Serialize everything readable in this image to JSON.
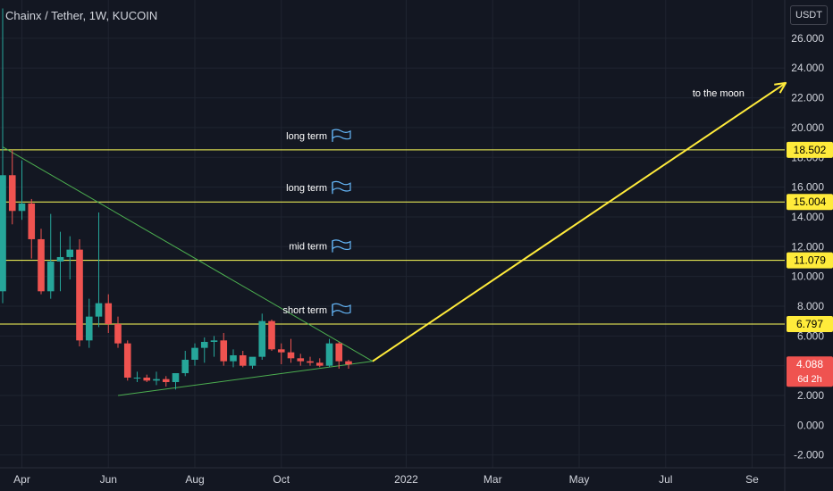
{
  "header": {
    "title": "Chainx / Tether, 1W, KUCOIN",
    "unit": "USDT"
  },
  "chart_data": {
    "type": "candlestick",
    "title": "Chainx / Tether, 1W, KUCOIN",
    "ylabel": "USDT",
    "ylim": [
      -2.6,
      27.5
    ],
    "y_ticks": [
      "-2.000",
      "0.000",
      "2.000",
      "4.000",
      "6.000",
      "8.000",
      "10.000",
      "12.000",
      "14.000",
      "16.000",
      "18.000",
      "20.000",
      "22.000",
      "24.000",
      "26.000"
    ],
    "y_tick_values": [
      -2,
      0,
      2,
      4,
      6,
      8,
      10,
      12,
      14,
      16,
      18,
      20,
      22,
      24,
      26
    ],
    "x_labels": [
      {
        "label": "Apr",
        "week": 2
      },
      {
        "label": "Jun",
        "week": 11
      },
      {
        "label": "Aug",
        "week": 20
      },
      {
        "label": "Oct",
        "week": 29
      },
      {
        "label": "2022",
        "week": 42
      },
      {
        "label": "Mar",
        "week": 51
      },
      {
        "label": "May",
        "week": 60
      },
      {
        "label": "Jul",
        "week": 69
      },
      {
        "label": "Se",
        "week": 78
      }
    ],
    "candles": [
      {
        "o": 9.0,
        "h": 28.0,
        "l": 8.2,
        "c": 16.8
      },
      {
        "o": 16.8,
        "h": 18.5,
        "l": 13.5,
        "c": 14.4
      },
      {
        "o": 14.4,
        "h": 17.8,
        "l": 13.8,
        "c": 14.9
      },
      {
        "o": 14.9,
        "h": 15.2,
        "l": 11.2,
        "c": 12.5
      },
      {
        "o": 12.5,
        "h": 13.2,
        "l": 8.8,
        "c": 9.0
      },
      {
        "o": 9.0,
        "h": 14.2,
        "l": 8.5,
        "c": 11.0
      },
      {
        "o": 11.0,
        "h": 13.0,
        "l": 9.0,
        "c": 11.3
      },
      {
        "o": 11.3,
        "h": 12.7,
        "l": 9.8,
        "c": 11.8
      },
      {
        "o": 11.8,
        "h": 12.5,
        "l": 5.3,
        "c": 5.7
      },
      {
        "o": 5.7,
        "h": 8.5,
        "l": 5.2,
        "c": 7.3
      },
      {
        "o": 7.3,
        "h": 14.3,
        "l": 6.6,
        "c": 8.2
      },
      {
        "o": 8.2,
        "h": 8.8,
        "l": 6.2,
        "c": 6.8
      },
      {
        "o": 6.8,
        "h": 7.3,
        "l": 5.2,
        "c": 5.5
      },
      {
        "o": 5.5,
        "h": 5.7,
        "l": 3.0,
        "c": 3.2
      },
      {
        "o": 3.2,
        "h": 3.6,
        "l": 2.9,
        "c": 3.2
      },
      {
        "o": 3.2,
        "h": 3.4,
        "l": 2.9,
        "c": 3.0
      },
      {
        "o": 3.0,
        "h": 3.6,
        "l": 2.7,
        "c": 3.1
      },
      {
        "o": 3.1,
        "h": 3.3,
        "l": 2.6,
        "c": 2.9
      },
      {
        "o": 2.9,
        "h": 3.5,
        "l": 2.4,
        "c": 3.5
      },
      {
        "o": 3.5,
        "h": 5.0,
        "l": 3.3,
        "c": 4.4
      },
      {
        "o": 4.4,
        "h": 5.5,
        "l": 4.0,
        "c": 5.2
      },
      {
        "o": 5.2,
        "h": 5.9,
        "l": 4.2,
        "c": 5.6
      },
      {
        "o": 5.6,
        "h": 6.0,
        "l": 4.6,
        "c": 5.7
      },
      {
        "o": 5.7,
        "h": 6.2,
        "l": 4.0,
        "c": 4.3
      },
      {
        "o": 4.3,
        "h": 5.1,
        "l": 3.9,
        "c": 4.7
      },
      {
        "o": 4.7,
        "h": 5.0,
        "l": 3.9,
        "c": 4.0
      },
      {
        "o": 4.0,
        "h": 4.5,
        "l": 3.8,
        "c": 4.6
      },
      {
        "o": 4.6,
        "h": 7.5,
        "l": 4.4,
        "c": 7.0
      },
      {
        "o": 7.0,
        "h": 7.1,
        "l": 5.0,
        "c": 5.1
      },
      {
        "o": 5.1,
        "h": 5.5,
        "l": 4.1,
        "c": 4.9
      },
      {
        "o": 4.9,
        "h": 5.8,
        "l": 4.2,
        "c": 4.5
      },
      {
        "o": 4.5,
        "h": 4.8,
        "l": 4.0,
        "c": 4.3
      },
      {
        "o": 4.3,
        "h": 4.6,
        "l": 4.0,
        "c": 4.2
      },
      {
        "o": 4.2,
        "h": 4.5,
        "l": 3.9,
        "c": 4.0
      },
      {
        "o": 4.0,
        "h": 5.8,
        "l": 3.9,
        "c": 5.5
      },
      {
        "o": 5.5,
        "h": 5.6,
        "l": 3.8,
        "c": 4.3
      },
      {
        "o": 4.3,
        "h": 4.4,
        "l": 3.8,
        "c": 4.088
      }
    ],
    "horizontal_levels": [
      {
        "price": 18.502,
        "label": "18.502",
        "note": "long term"
      },
      {
        "price": 15.004,
        "label": "15.004",
        "note": "long term"
      },
      {
        "price": 11.079,
        "label": "11.079",
        "note": "mid term"
      },
      {
        "price": 6.797,
        "label": "6.797",
        "note": "short term"
      }
    ],
    "trendlines": [
      {
        "from": [
          0,
          18.7
        ],
        "to": [
          38.5,
          4.3
        ]
      },
      {
        "from": [
          12,
          2.0
        ],
        "to": [
          38.5,
          4.3
        ]
      }
    ],
    "projection_arrow": {
      "from": [
        38.5,
        4.3
      ],
      "to": [
        81.5,
        23.0
      ]
    },
    "annotation": {
      "text": "to the moon",
      "at": [
        74.5,
        22.1
      ]
    },
    "current_price": {
      "label": "4.088",
      "countdown": "6d 2h"
    },
    "colors": {
      "background": "#131722",
      "up": "#26a69a",
      "down": "#ef5350",
      "level": "#ffff5a",
      "level_label_bg": "#ffeb3b",
      "trendline": "#4caf50",
      "arrow": "#ffeb3b",
      "price_badge": "#ef5350",
      "text": "#d1d4dc",
      "grid": "#1f2430",
      "flag": "#64b5f6"
    }
  }
}
